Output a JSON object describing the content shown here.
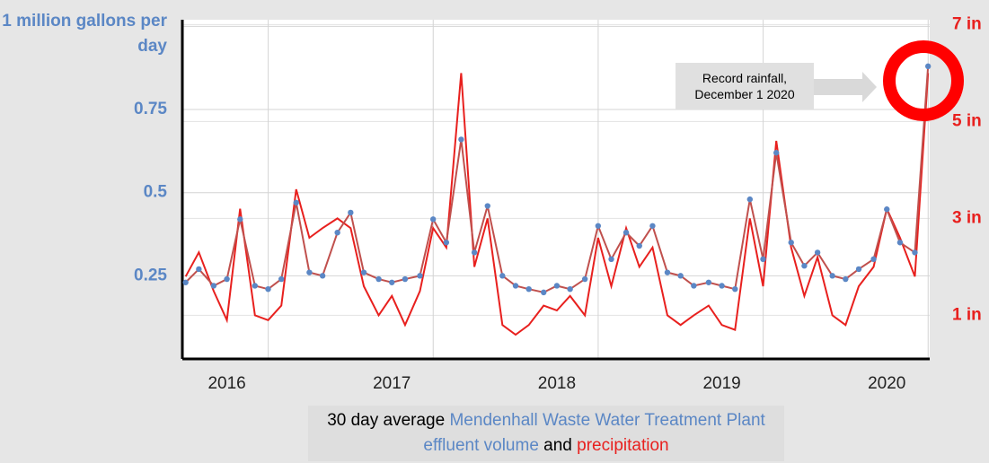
{
  "chart_data": {
    "type": "line",
    "annotation": "Record rainfall, December 1 2020",
    "caption": {
      "p1": "30 day average",
      "p2": "Mendenhall Waste Water Treatment Plant effluent volume",
      "p3": "and",
      "p4": "precipitation"
    },
    "x": [
      2015.75,
      2015.83,
      2015.92,
      2016.0,
      2016.08,
      2016.17,
      2016.25,
      2016.33,
      2016.42,
      2016.5,
      2016.58,
      2016.67,
      2016.75,
      2016.83,
      2016.92,
      2017.0,
      2017.08,
      2017.17,
      2017.25,
      2017.33,
      2017.42,
      2017.5,
      2017.58,
      2017.67,
      2017.75,
      2017.83,
      2017.92,
      2018.0,
      2018.08,
      2018.17,
      2018.25,
      2018.33,
      2018.42,
      2018.5,
      2018.58,
      2018.67,
      2018.75,
      2018.83,
      2018.92,
      2019.0,
      2019.08,
      2019.17,
      2019.25,
      2019.33,
      2019.42,
      2019.5,
      2019.58,
      2019.67,
      2019.75,
      2019.83,
      2019.92,
      2020.0,
      2020.08,
      2020.17,
      2020.25
    ],
    "series": [
      {
        "name": "Mendenhall Waste Water Treatment Plant effluent volume",
        "color": "#5b87c5",
        "axis": "y",
        "values": [
          0.23,
          0.27,
          0.22,
          0.24,
          0.42,
          0.22,
          0.21,
          0.24,
          0.47,
          0.26,
          0.25,
          0.38,
          0.44,
          0.26,
          0.24,
          0.23,
          0.24,
          0.25,
          0.42,
          0.35,
          0.66,
          0.32,
          0.46,
          0.25,
          0.22,
          0.21,
          0.2,
          0.22,
          0.21,
          0.24,
          0.4,
          0.3,
          0.38,
          0.34,
          0.4,
          0.26,
          0.25,
          0.22,
          0.23,
          0.22,
          0.21,
          0.48,
          0.3,
          0.62,
          0.35,
          0.28,
          0.32,
          0.25,
          0.24,
          0.27,
          0.3,
          0.45,
          0.35,
          0.32,
          0.88
        ]
      },
      {
        "name": "precipitation",
        "color": "#e8201e",
        "axis": "y2",
        "values": [
          1.8,
          2.3,
          1.5,
          0.9,
          3.2,
          1.0,
          0.9,
          1.2,
          3.6,
          2.6,
          2.8,
          3.0,
          2.8,
          1.6,
          1.0,
          1.4,
          0.8,
          1.5,
          2.8,
          2.4,
          6.0,
          2.0,
          3.0,
          0.8,
          0.6,
          0.8,
          1.2,
          1.1,
          1.4,
          1.0,
          2.6,
          1.6,
          2.8,
          2.0,
          2.4,
          1.0,
          0.8,
          1.0,
          1.2,
          0.8,
          0.7,
          3.0,
          1.6,
          4.6,
          2.4,
          1.4,
          2.2,
          1.0,
          0.8,
          1.6,
          2.0,
          3.2,
          2.6,
          1.8,
          6.0
        ]
      }
    ],
    "xlim": [
      2015.73,
      2020.26
    ],
    "xticks": [
      2016,
      2017,
      2018,
      2019,
      2020
    ],
    "ylim": [
      0,
      1.02
    ],
    "yticks": [
      {
        "value": 0.25,
        "label": "0.25"
      },
      {
        "value": 0.5,
        "label": "0.5"
      },
      {
        "value": 0.75,
        "label": "0.75"
      },
      {
        "value": 1,
        "label": "1 million gallons per day"
      }
    ],
    "y2lim": [
      0.1,
      7.1
    ],
    "y2ticks": [
      {
        "value": 1,
        "label": "1 in"
      },
      {
        "value": 3,
        "label": "3 in"
      },
      {
        "value": 5,
        "label": "5 in"
      },
      {
        "value": 7,
        "label": "7 in"
      }
    ],
    "grid": true
  }
}
